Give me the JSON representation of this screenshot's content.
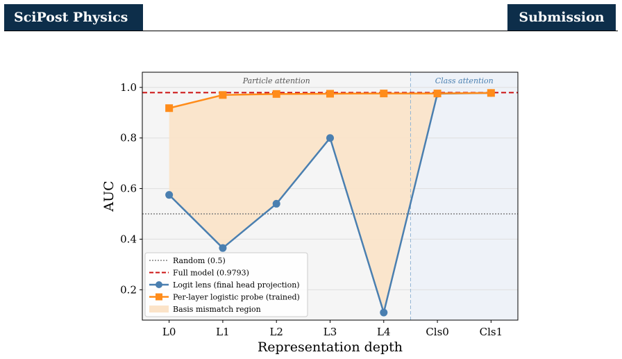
{
  "header": {
    "journal": "SciPost Physics",
    "status": "Submission"
  },
  "chart_data": {
    "type": "line",
    "categories": [
      "L0",
      "L1",
      "L2",
      "L3",
      "L4",
      "Cls0",
      "Cls1"
    ],
    "xlabel": "Representation depth",
    "ylabel": "AUC",
    "ylim": [
      0.08,
      1.06
    ],
    "yticks": [
      0.2,
      0.4,
      0.6,
      0.8,
      1.0
    ],
    "ytick_labels": [
      "0.2",
      "0.4",
      "0.6",
      "0.8",
      "1.0"
    ],
    "grid": true,
    "series": [
      {
        "name": "Logit lens (final head projection)",
        "color": "#4a7fb0",
        "marker": "circle",
        "values": [
          0.575,
          0.365,
          0.54,
          0.8,
          0.11,
          0.975,
          0.978
        ]
      },
      {
        "name": "Per-layer logistic probe (trained)",
        "color": "#ff8c1a",
        "marker": "square",
        "values": [
          0.918,
          0.97,
          0.974,
          0.975,
          0.976,
          0.976,
          0.978
        ]
      }
    ],
    "reference_lines": [
      {
        "name": "Random (0.5)",
        "value": 0.5,
        "style": "dotted",
        "color": "#808080"
      },
      {
        "name": "Full model (0.9793)",
        "value": 0.9793,
        "style": "dashed",
        "color": "#cc1111"
      }
    ],
    "fill_region": {
      "name": "Basis mismatch region",
      "color": "#fbe3c8"
    },
    "regions": [
      {
        "label": "Particle attention",
        "from": -0.5,
        "to": 4.5,
        "color": "#f5f5f5",
        "text_color": "#555555"
      },
      {
        "label": "Class attention",
        "from": 4.5,
        "to": 6.5,
        "color": "#eef2f8",
        "text_color": "#4a7fb0"
      }
    ],
    "region_divider": 4.5,
    "legend_position": "lower-left"
  }
}
